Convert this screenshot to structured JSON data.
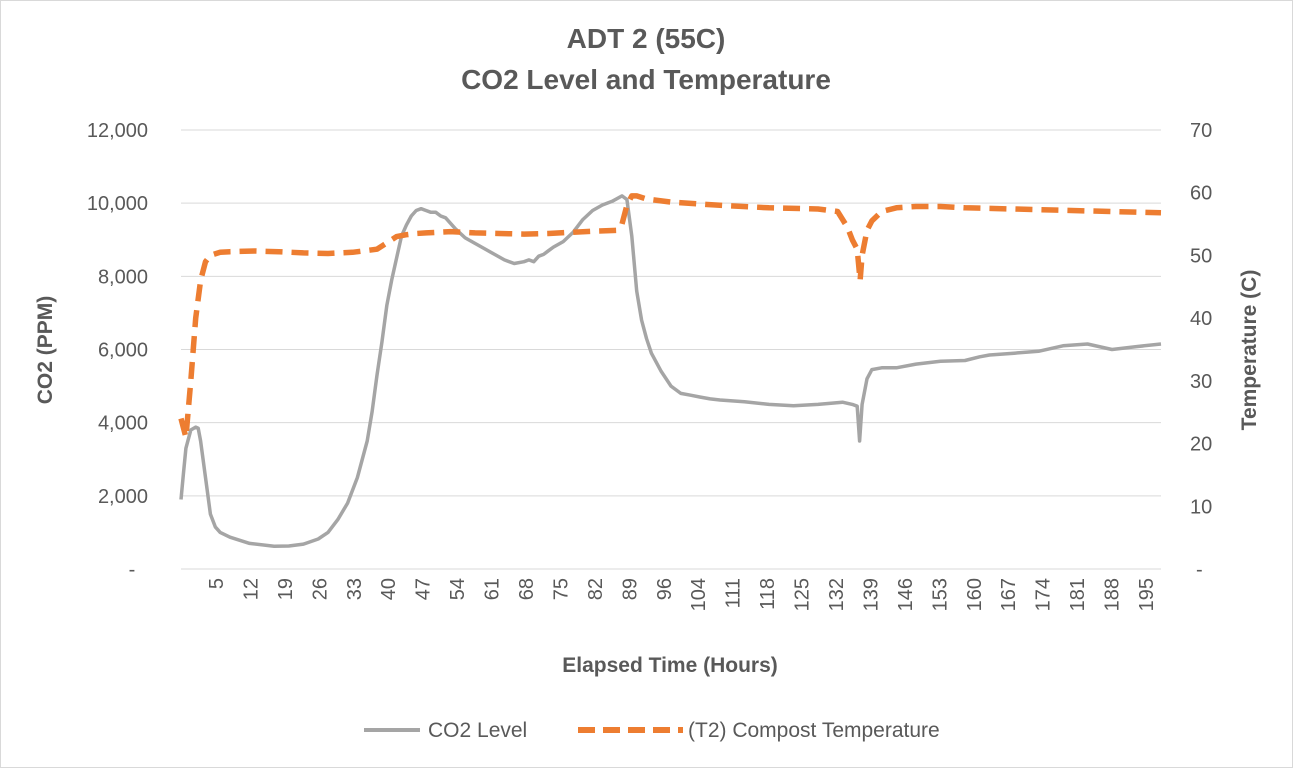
{
  "chart_data": {
    "type": "line",
    "title": "ADT 2 (55C)",
    "subtitle": "CO2 Level and Temperature",
    "xlabel": "Elapsed Time (Hours)",
    "ylabel": "CO2 (PPM)",
    "y2label": "Temperature (C)",
    "xlim": [
      0,
      200
    ],
    "ylim": [
      0,
      12000
    ],
    "y2lim": [
      0,
      70
    ],
    "x_tick_labels": [
      "5",
      "12",
      "19",
      "26",
      "33",
      "40",
      "47",
      "54",
      "61",
      "68",
      "75",
      "82",
      "89",
      "96",
      "104",
      "111",
      "118",
      "125",
      "132",
      "139",
      "146",
      "153",
      "160",
      "167",
      "174",
      "181",
      "188",
      "195"
    ],
    "y_tick_labels": [
      "-",
      "2,000",
      "4,000",
      "6,000",
      "8,000",
      "10,000",
      "12,000"
    ],
    "y_tick_values": [
      0,
      2000,
      4000,
      6000,
      8000,
      10000,
      12000
    ],
    "y2_tick_labels": [
      "-",
      "10",
      "20",
      "30",
      "40",
      "50",
      "60",
      "70"
    ],
    "y2_tick_values": [
      0,
      10,
      20,
      30,
      40,
      50,
      60,
      70
    ],
    "grid": true,
    "legend_position": "bottom",
    "colors": {
      "co2": "#a5a5a5",
      "temp": "#ed7d31",
      "grid": "#d9d9d9",
      "text": "#595959"
    },
    "series": [
      {
        "name": "CO2 Level",
        "axis": "left",
        "x": [
          0,
          0.5,
          1,
          2,
          3,
          3.5,
          4,
          5,
          6,
          7,
          8,
          10,
          14,
          19,
          22,
          25,
          28,
          30,
          32,
          34,
          36,
          38,
          39,
          40,
          41,
          42,
          43,
          44,
          45,
          46,
          47,
          48,
          49,
          50,
          51,
          52,
          53,
          54,
          55,
          56,
          58,
          60,
          62,
          64,
          66,
          68,
          70,
          71,
          72,
          73,
          74,
          75,
          76,
          78,
          80,
          82,
          84,
          86,
          88,
          90,
          91,
          92,
          93,
          94,
          95,
          96,
          98,
          100,
          102,
          104,
          106,
          108,
          110,
          115,
          120,
          125,
          130,
          135,
          137,
          138,
          138.5,
          139,
          140,
          141,
          143,
          146,
          150,
          155,
          160,
          163,
          165,
          170,
          175,
          180,
          185,
          190,
          195,
          200
        ],
        "values": [
          1900,
          2600,
          3300,
          3800,
          3880,
          3850,
          3500,
          2500,
          1500,
          1150,
          1000,
          870,
          700,
          620,
          630,
          680,
          820,
          1000,
          1350,
          1800,
          2500,
          3500,
          4300,
          5300,
          6200,
          7200,
          7900,
          8500,
          9100,
          9400,
          9650,
          9800,
          9850,
          9800,
          9750,
          9750,
          9650,
          9600,
          9450,
          9300,
          9050,
          8900,
          8750,
          8600,
          8450,
          8350,
          8400,
          8450,
          8400,
          8550,
          8600,
          8700,
          8800,
          8950,
          9200,
          9550,
          9800,
          9950,
          10050,
          10200,
          10100,
          9100,
          7600,
          6800,
          6300,
          5900,
          5400,
          5000,
          4800,
          4750,
          4700,
          4650,
          4620,
          4570,
          4500,
          4460,
          4500,
          4560,
          4500,
          4450,
          3500,
          4500,
          5200,
          5450,
          5500,
          5500,
          5600,
          5680,
          5700,
          5800,
          5850,
          5900,
          5950,
          6100,
          6150,
          6000,
          6080,
          6150
        ]
      },
      {
        "name": "(T2) Compost Temperature",
        "axis": "right",
        "x": [
          0,
          1,
          2,
          3,
          4,
          5,
          6,
          8,
          10,
          15,
          20,
          25,
          30,
          35,
          40,
          42,
          44,
          46,
          48,
          50,
          55,
          60,
          65,
          70,
          75,
          80,
          85,
          89,
          90,
          91,
          92,
          93,
          95,
          100,
          110,
          120,
          130,
          134,
          136,
          137,
          138,
          138.6,
          139,
          140,
          141,
          143,
          146,
          150,
          155,
          160,
          170,
          180,
          190,
          200
        ],
        "values": [
          24,
          21,
          30,
          40,
          46,
          49,
          50,
          50.5,
          50.6,
          50.7,
          50.6,
          50.4,
          50.3,
          50.5,
          51,
          52,
          53,
          53.3,
          53.5,
          53.6,
          53.8,
          53.6,
          53.5,
          53.4,
          53.5,
          53.7,
          53.9,
          54,
          55,
          58,
          59.5,
          59.5,
          59,
          58.5,
          58,
          57.6,
          57.4,
          57,
          54.5,
          52.5,
          51,
          46,
          50,
          54,
          55.5,
          57,
          57.6,
          57.8,
          57.8,
          57.6,
          57.4,
          57.2,
          57,
          56.8
        ]
      }
    ]
  },
  "legend": {
    "items": [
      {
        "label": "CO2 Level"
      },
      {
        "label": "(T2) Compost Temperature"
      }
    ]
  }
}
